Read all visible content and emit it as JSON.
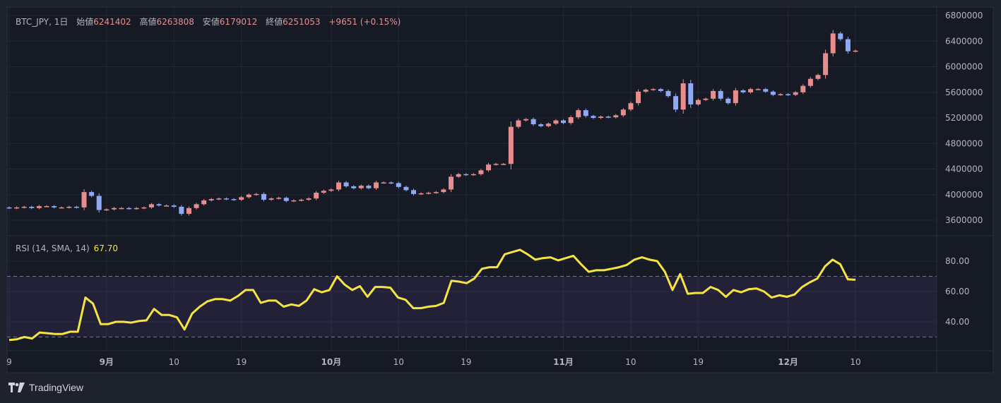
{
  "legend": {
    "symbol": "BTC_JPY, 1日",
    "open_label": "始値",
    "open": "6241402",
    "high_label": "高値",
    "high": "6263808",
    "low_label": "安値",
    "low": "6179012",
    "close_label": "終値",
    "close": "6251053",
    "change": "+9651 (+0.15%)"
  },
  "rsi_legend": {
    "title": "RSI (14, SMA, 14)",
    "value": "67.70"
  },
  "logo": {
    "text": "TradingView"
  },
  "colors": {
    "up": "#e88d8d",
    "down": "#8fa9f6",
    "rsi": "#f5e342",
    "bg": "#161a25"
  },
  "chart_data": [
    {
      "type": "candlestick",
      "title": "BTC_JPY, 1日",
      "x_start": "Aug 19",
      "x_end": "Dec 10",
      "ylim": [
        3450000,
        6850000
      ],
      "y_ticks": [
        "6800000",
        "6400000",
        "6000000",
        "5600000",
        "5200000",
        "4800000",
        "4400000",
        "4000000",
        "3600000"
      ],
      "y_tick_values": [
        6800000,
        6400000,
        6000000,
        5600000,
        5200000,
        4800000,
        4400000,
        4000000,
        3600000
      ],
      "x_ticks": [
        {
          "label": "9",
          "day": 0,
          "bold": false
        },
        {
          "label": "9月",
          "day": 13,
          "bold": true
        },
        {
          "label": "10",
          "day": 22,
          "bold": false
        },
        {
          "label": "19",
          "day": 31,
          "bold": false
        },
        {
          "label": "10月",
          "day": 43,
          "bold": true
        },
        {
          "label": "10",
          "day": 52,
          "bold": false
        },
        {
          "label": "19",
          "day": 61,
          "bold": false
        },
        {
          "label": "11月",
          "day": 74,
          "bold": true
        },
        {
          "label": "10",
          "day": 83,
          "bold": false
        },
        {
          "label": "19",
          "day": 92,
          "bold": false
        },
        {
          "label": "12月",
          "day": 104,
          "bold": true
        },
        {
          "label": "10",
          "day": 113,
          "bold": false
        }
      ],
      "first_open": 3800000,
      "close": [
        3790000,
        3800000,
        3810000,
        3790000,
        3820000,
        3820000,
        3800000,
        3800000,
        3810000,
        3800000,
        4040000,
        3980000,
        3760000,
        3770000,
        3790000,
        3790000,
        3780000,
        3790000,
        3800000,
        3850000,
        3830000,
        3830000,
        3810000,
        3700000,
        3790000,
        3850000,
        3910000,
        3930000,
        3940000,
        3930000,
        3920000,
        3960000,
        4000000,
        4010000,
        3920000,
        3940000,
        3950000,
        3900000,
        3910000,
        3920000,
        3940000,
        4030000,
        4060000,
        4080000,
        4190000,
        4130000,
        4100000,
        4140000,
        4100000,
        4190000,
        4190000,
        4180000,
        4120000,
        4070000,
        4010000,
        4020000,
        4030000,
        4040000,
        4080000,
        4280000,
        4320000,
        4310000,
        4320000,
        4380000,
        4470000,
        4480000,
        4480000,
        5060000,
        5160000,
        5180000,
        5100000,
        5070000,
        5110000,
        5160000,
        5120000,
        5210000,
        5320000,
        5230000,
        5200000,
        5220000,
        5210000,
        5240000,
        5330000,
        5430000,
        5610000,
        5640000,
        5650000,
        5620000,
        5540000,
        5330000,
        5740000,
        5410000,
        5480000,
        5500000,
        5620000,
        5500000,
        5430000,
        5630000,
        5600000,
        5650000,
        5650000,
        5610000,
        5560000,
        5570000,
        5560000,
        5600000,
        5700000,
        5810000,
        5870000,
        6210000,
        6520000,
        6430000,
        6241402,
        6251053
      ]
    },
    {
      "type": "line",
      "title": "RSI (14, SMA, 14)",
      "ylim": [
        23,
        95
      ],
      "y_ticks": [
        "80.00",
        "60.00",
        "40.00"
      ],
      "y_tick_values": [
        80,
        60,
        40
      ],
      "bands": [
        30,
        70
      ],
      "values": [
        28,
        28.5,
        30,
        29,
        33,
        32.5,
        32,
        32,
        33.5,
        33.5,
        56,
        52,
        38.5,
        38.5,
        40,
        40,
        39.5,
        40.5,
        41,
        48.5,
        44.5,
        44.5,
        43,
        35,
        45.5,
        50,
        53.5,
        55,
        55,
        54,
        57,
        61,
        61,
        52.5,
        54,
        54,
        50,
        51.5,
        50.5,
        54,
        61.5,
        59.5,
        61,
        70,
        64.5,
        61,
        63.5,
        56.5,
        63,
        63,
        62.5,
        56,
        54.5,
        49,
        49,
        50,
        50.5,
        52.5,
        67,
        66.5,
        65.5,
        68.5,
        75,
        76,
        76,
        84.5,
        86,
        87.5,
        84.5,
        81,
        82,
        82.5,
        80.5,
        82,
        83.5,
        78,
        73,
        74,
        74,
        75,
        76,
        77.5,
        81,
        82.5,
        81,
        80,
        73,
        61,
        71.5,
        58.5,
        59,
        59,
        63,
        61,
        56.5,
        61,
        59.5,
        61.5,
        62,
        60,
        56,
        57.5,
        56.5,
        58,
        63,
        66,
        68.5,
        76.5,
        81,
        78,
        68,
        67.7
      ]
    }
  ]
}
